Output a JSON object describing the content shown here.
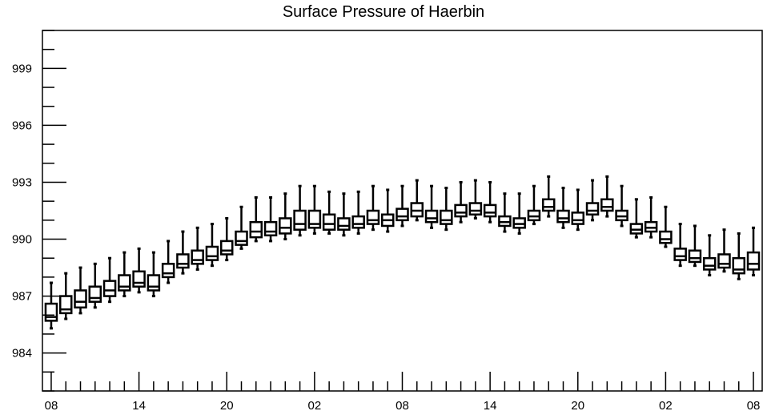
{
  "chart_data": {
    "type": "box",
    "title": "Surface Pressure of Haerbin",
    "xlabel": "",
    "ylabel": "",
    "ylim": [
      982,
      1001
    ],
    "y_ticks": [
      984,
      987,
      990,
      993,
      996,
      999
    ],
    "y_tick_labels": [
      "984",
      "987",
      "990",
      "993",
      "996",
      "999"
    ],
    "x_ticks_hours": [
      0,
      6,
      12,
      18,
      24,
      30,
      36,
      42,
      48
    ],
    "x_tick_labels": [
      "08",
      "14",
      "20",
      "02",
      "08",
      "14",
      "20",
      "02",
      "08"
    ],
    "xlim_hours": [
      -0.6,
      48.6
    ],
    "grid": false,
    "box_color": "#000000",
    "series": [
      {
        "values": [
          {
            "hour": 0,
            "whisker_low": 985.3,
            "q1": 985.7,
            "median": 985.9,
            "q3": 986.6,
            "whisker_high": 987.7
          },
          {
            "hour": 1,
            "whisker_low": 985.8,
            "q1": 986.1,
            "median": 986.3,
            "q3": 987.0,
            "whisker_high": 988.2
          },
          {
            "hour": 2,
            "whisker_low": 986.1,
            "q1": 986.4,
            "median": 986.7,
            "q3": 987.3,
            "whisker_high": 988.5
          },
          {
            "hour": 3,
            "whisker_low": 986.4,
            "q1": 986.7,
            "median": 986.9,
            "q3": 987.5,
            "whisker_high": 988.7
          },
          {
            "hour": 4,
            "whisker_low": 986.7,
            "q1": 987.0,
            "median": 987.3,
            "q3": 987.8,
            "whisker_high": 989.0
          },
          {
            "hour": 5,
            "whisker_low": 987.0,
            "q1": 987.3,
            "median": 987.5,
            "q3": 988.1,
            "whisker_high": 989.3
          },
          {
            "hour": 6,
            "whisker_low": 987.2,
            "q1": 987.5,
            "median": 987.7,
            "q3": 988.3,
            "whisker_high": 989.5
          },
          {
            "hour": 7,
            "whisker_low": 987.0,
            "q1": 987.3,
            "median": 987.5,
            "q3": 988.1,
            "whisker_high": 989.3
          },
          {
            "hour": 8,
            "whisker_low": 987.7,
            "q1": 988.0,
            "median": 988.2,
            "q3": 988.7,
            "whisker_high": 989.9
          },
          {
            "hour": 9,
            "whisker_low": 988.2,
            "q1": 988.5,
            "median": 988.7,
            "q3": 989.2,
            "whisker_high": 990.4
          },
          {
            "hour": 10,
            "whisker_low": 988.4,
            "q1": 988.7,
            "median": 988.9,
            "q3": 989.4,
            "whisker_high": 990.6
          },
          {
            "hour": 11,
            "whisker_low": 988.6,
            "q1": 988.9,
            "median": 989.1,
            "q3": 989.6,
            "whisker_high": 990.8
          },
          {
            "hour": 12,
            "whisker_low": 988.9,
            "q1": 989.2,
            "median": 989.4,
            "q3": 989.9,
            "whisker_high": 991.1
          },
          {
            "hour": 13,
            "whisker_low": 989.5,
            "q1": 989.7,
            "median": 989.9,
            "q3": 990.4,
            "whisker_high": 991.7
          },
          {
            "hour": 14,
            "whisker_low": 989.9,
            "q1": 990.1,
            "median": 990.4,
            "q3": 990.9,
            "whisker_high": 992.2
          },
          {
            "hour": 15,
            "whisker_low": 989.9,
            "q1": 990.2,
            "median": 990.4,
            "q3": 990.9,
            "whisker_high": 992.2
          },
          {
            "hour": 16,
            "whisker_low": 990.0,
            "q1": 990.3,
            "median": 990.6,
            "q3": 991.1,
            "whisker_high": 992.4
          },
          {
            "hour": 17,
            "whisker_low": 990.2,
            "q1": 990.5,
            "median": 990.8,
            "q3": 991.5,
            "whisker_high": 992.8
          },
          {
            "hour": 18,
            "whisker_low": 990.3,
            "q1": 990.6,
            "median": 990.8,
            "q3": 991.5,
            "whisker_high": 992.8
          },
          {
            "hour": 19,
            "whisker_low": 990.3,
            "q1": 990.5,
            "median": 990.8,
            "q3": 991.3,
            "whisker_high": 992.5
          },
          {
            "hour": 20,
            "whisker_low": 990.2,
            "q1": 990.5,
            "median": 990.7,
            "q3": 991.1,
            "whisker_high": 992.4
          },
          {
            "hour": 21,
            "whisker_low": 990.3,
            "q1": 990.6,
            "median": 990.8,
            "q3": 991.2,
            "whisker_high": 992.5
          },
          {
            "hour": 22,
            "whisker_low": 990.5,
            "q1": 990.8,
            "median": 991.0,
            "q3": 991.5,
            "whisker_high": 992.8
          },
          {
            "hour": 23,
            "whisker_low": 990.4,
            "q1": 990.7,
            "median": 991.0,
            "q3": 991.3,
            "whisker_high": 992.6
          },
          {
            "hour": 24,
            "whisker_low": 990.7,
            "q1": 991.0,
            "median": 991.2,
            "q3": 991.6,
            "whisker_high": 992.8
          },
          {
            "hour": 25,
            "whisker_low": 991.0,
            "q1": 991.2,
            "median": 991.5,
            "q3": 991.9,
            "whisker_high": 993.1
          },
          {
            "hour": 26,
            "whisker_low": 990.6,
            "q1": 990.9,
            "median": 991.1,
            "q3": 991.5,
            "whisker_high": 992.8
          },
          {
            "hour": 27,
            "whisker_low": 990.5,
            "q1": 990.8,
            "median": 991.0,
            "q3": 991.5,
            "whisker_high": 992.7
          },
          {
            "hour": 28,
            "whisker_low": 990.9,
            "q1": 991.2,
            "median": 991.4,
            "q3": 991.8,
            "whisker_high": 993.0
          },
          {
            "hour": 29,
            "whisker_low": 991.1,
            "q1": 991.3,
            "median": 991.5,
            "q3": 991.9,
            "whisker_high": 993.1
          },
          {
            "hour": 30,
            "whisker_low": 990.9,
            "q1": 991.2,
            "median": 991.4,
            "q3": 991.8,
            "whisker_high": 993.0
          },
          {
            "hour": 31,
            "whisker_low": 990.4,
            "q1": 990.7,
            "median": 990.9,
            "q3": 991.2,
            "whisker_high": 992.4
          },
          {
            "hour": 32,
            "whisker_low": 990.3,
            "q1": 990.6,
            "median": 990.8,
            "q3": 991.1,
            "whisker_high": 992.4
          },
          {
            "hour": 33,
            "whisker_low": 990.8,
            "q1": 991.0,
            "median": 991.2,
            "q3": 991.5,
            "whisker_high": 992.8
          },
          {
            "hour": 34,
            "whisker_low": 991.2,
            "q1": 991.5,
            "median": 991.7,
            "q3": 992.1,
            "whisker_high": 993.3
          },
          {
            "hour": 35,
            "whisker_low": 990.6,
            "q1": 990.9,
            "median": 991.1,
            "q3": 991.5,
            "whisker_high": 992.7
          },
          {
            "hour": 36,
            "whisker_low": 990.5,
            "q1": 990.8,
            "median": 991.0,
            "q3": 991.4,
            "whisker_high": 992.6
          },
          {
            "hour": 37,
            "whisker_low": 991.0,
            "q1": 991.3,
            "median": 991.5,
            "q3": 991.9,
            "whisker_high": 993.1
          },
          {
            "hour": 38,
            "whisker_low": 991.2,
            "q1": 991.5,
            "median": 991.7,
            "q3": 992.1,
            "whisker_high": 993.3
          },
          {
            "hour": 39,
            "whisker_low": 990.7,
            "q1": 991.0,
            "median": 991.2,
            "q3": 991.5,
            "whisker_high": 992.8
          },
          {
            "hour": 40,
            "whisker_low": 990.1,
            "q1": 990.3,
            "median": 990.5,
            "q3": 990.8,
            "whisker_high": 992.1
          },
          {
            "hour": 41,
            "whisker_low": 990.1,
            "q1": 990.4,
            "median": 990.6,
            "q3": 990.9,
            "whisker_high": 992.2
          },
          {
            "hour": 42,
            "whisker_low": 989.6,
            "q1": 989.8,
            "median": 990.0,
            "q3": 990.4,
            "whisker_high": 991.7
          },
          {
            "hour": 43,
            "whisker_low": 988.6,
            "q1": 988.9,
            "median": 989.1,
            "q3": 989.5,
            "whisker_high": 990.8
          },
          {
            "hour": 44,
            "whisker_low": 988.6,
            "q1": 988.8,
            "median": 989.0,
            "q3": 989.4,
            "whisker_high": 990.7
          },
          {
            "hour": 45,
            "whisker_low": 988.1,
            "q1": 988.4,
            "median": 988.6,
            "q3": 989.0,
            "whisker_high": 990.2
          },
          {
            "hour": 46,
            "whisker_low": 988.3,
            "q1": 988.5,
            "median": 988.7,
            "q3": 989.2,
            "whisker_high": 990.5
          },
          {
            "hour": 47,
            "whisker_low": 987.9,
            "q1": 988.2,
            "median": 988.4,
            "q3": 989.0,
            "whisker_high": 990.3
          },
          {
            "hour": 48,
            "whisker_low": 988.1,
            "q1": 988.4,
            "median": 988.7,
            "q3": 989.3,
            "whisker_high": 990.6
          }
        ]
      }
    ]
  }
}
